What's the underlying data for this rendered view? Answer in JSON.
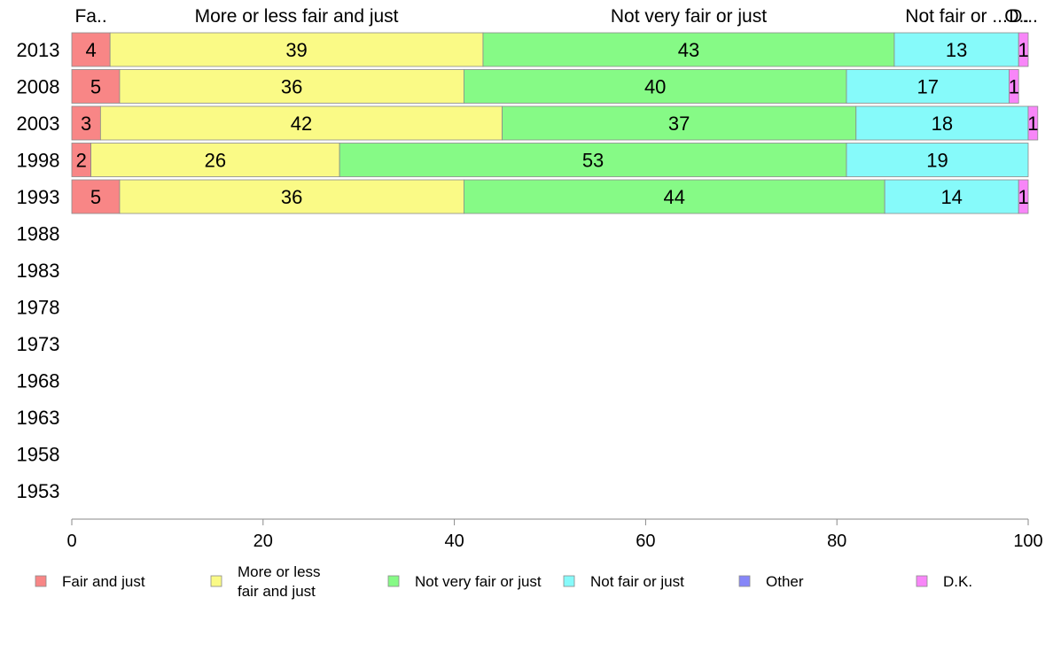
{
  "chart_data": {
    "type": "bar",
    "orientation": "horizontal",
    "stacked": true,
    "categories": [
      "2013",
      "2008",
      "2003",
      "1998",
      "1993",
      "1988",
      "1983",
      "1978",
      "1973",
      "1968",
      "1963",
      "1958",
      "1953"
    ],
    "series": [
      {
        "name": "Fair and just",
        "short_label": "Fa..",
        "color": "#f88686",
        "values": [
          4,
          5,
          3,
          2,
          5,
          null,
          null,
          null,
          null,
          null,
          null,
          null,
          null
        ]
      },
      {
        "name": "More or less fair and just",
        "legend_lines": [
          "More or less",
          "fair and just"
        ],
        "short_label": "More or less fair and just",
        "color": "#fafa86",
        "values": [
          39,
          36,
          42,
          26,
          36,
          null,
          null,
          null,
          null,
          null,
          null,
          null,
          null
        ]
      },
      {
        "name": "Not very fair or just",
        "short_label": "Not very fair or just",
        "color": "#86fa86",
        "values": [
          43,
          40,
          37,
          53,
          44,
          null,
          null,
          null,
          null,
          null,
          null,
          null,
          null
        ]
      },
      {
        "name": "Not fair or just",
        "short_label": "Not fair or ...",
        "color": "#86fafa",
        "values": [
          13,
          17,
          18,
          19,
          14,
          null,
          null,
          null,
          null,
          null,
          null,
          null,
          null
        ]
      },
      {
        "name": "Other",
        "short_label": "O..",
        "color": "#8686f8",
        "values": [
          0,
          0,
          0,
          0,
          0,
          null,
          null,
          null,
          null,
          null,
          null,
          null,
          null
        ]
      },
      {
        "name": "D.K.",
        "short_label": "D...",
        "color": "#f886f8",
        "values": [
          1,
          1,
          1,
          0,
          1,
          null,
          null,
          null,
          null,
          null,
          null,
          null,
          null
        ]
      }
    ],
    "xlim": [
      0,
      100
    ],
    "xticks": [
      0,
      20,
      40,
      60,
      80,
      100
    ],
    "title": "",
    "xlabel": "",
    "ylabel": "",
    "grid": false,
    "legend_position": "bottom"
  }
}
